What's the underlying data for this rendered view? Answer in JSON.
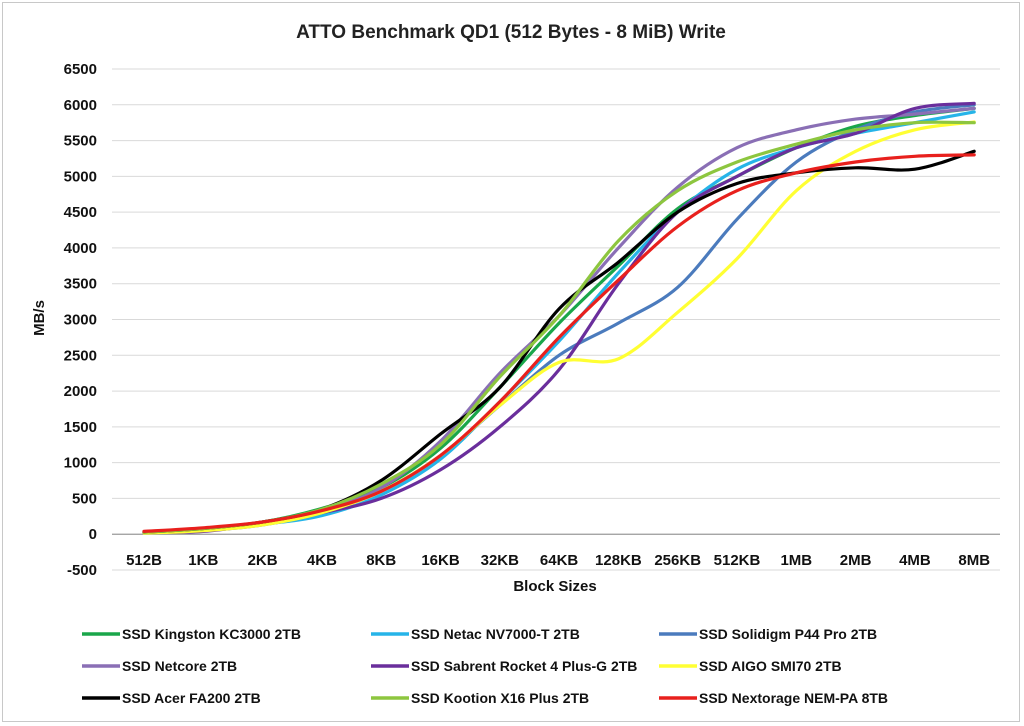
{
  "chart_data": {
    "type": "line",
    "title": "ATTO Benchmark QD1 (512 Bytes - 8 MiB) Write",
    "xlabel": "Block Sizes",
    "ylabel": "MB/s",
    "ylim": [
      -500,
      6500
    ],
    "y_ticks": [
      -500,
      0,
      500,
      1000,
      1500,
      2000,
      2500,
      3000,
      3500,
      4000,
      4500,
      5000,
      5500,
      6000,
      6500
    ],
    "grid": "horizontal",
    "legend_position": "bottom",
    "categories": [
      "512B",
      "1KB",
      "2KB",
      "4KB",
      "8KB",
      "16KB",
      "32KB",
      "64KB",
      "128KB",
      "256KB",
      "512KB",
      "1MB",
      "2MB",
      "4MB",
      "8MB"
    ],
    "series": [
      {
        "name": "SSD Kingston KC3000 2TB",
        "color": "#1aa64a",
        "values": [
          30,
          80,
          170,
          360,
          650,
          1200,
          2050,
          2950,
          3750,
          4550,
          5000,
          5400,
          5700,
          5850,
          5950
        ]
      },
      {
        "name": "SSD Netac NV7000-T 2TB",
        "color": "#26b4e8",
        "values": [
          20,
          60,
          140,
          260,
          550,
          1050,
          1850,
          2700,
          3650,
          4500,
          5100,
          5400,
          5600,
          5750,
          5900
        ]
      },
      {
        "name": "SSD Solidigm P44 Pro 2TB",
        "color": "#4b7bbd",
        "values": [
          15,
          50,
          130,
          300,
          600,
          1100,
          1800,
          2500,
          2950,
          3450,
          4400,
          5200,
          5650,
          5900,
          6000
        ]
      },
      {
        "name": "SSD Netcore 2TB",
        "color": "#8a6fb5",
        "values": [
          20,
          60,
          150,
          330,
          650,
          1300,
          2250,
          3050,
          4000,
          4850,
          5400,
          5650,
          5800,
          5870,
          5950
        ]
      },
      {
        "name": "SSD Sabrent Rocket 4 Plus-G 2TB",
        "color": "#6a2e9c",
        "values": [
          25,
          40,
          150,
          300,
          500,
          900,
          1500,
          2300,
          3500,
          4500,
          5000,
          5400,
          5600,
          5950,
          6020
        ]
      },
      {
        "name": "SSD AIGO SMI70 2TB",
        "color": "#ffff33",
        "values": [
          15,
          50,
          130,
          300,
          600,
          1100,
          1800,
          2400,
          2450,
          3100,
          3850,
          4800,
          5350,
          5650,
          5760
        ]
      },
      {
        "name": "SSD Acer FA200 2TB",
        "color": "#000000",
        "values": [
          30,
          80,
          170,
          350,
          750,
          1400,
          2050,
          3150,
          3800,
          4500,
          4900,
          5050,
          5120,
          5100,
          5350
        ]
      },
      {
        "name": "SSD Kootion X16 Plus 2TB",
        "color": "#8dc63f",
        "values": [
          30,
          80,
          170,
          350,
          700,
          1250,
          2200,
          3050,
          4100,
          4800,
          5200,
          5450,
          5650,
          5750,
          5750
        ]
      },
      {
        "name": "SSD Nextorage NEM-PA 8TB",
        "color": "#e8201d",
        "values": [
          40,
          90,
          170,
          330,
          600,
          1100,
          1850,
          2750,
          3550,
          4300,
          4800,
          5050,
          5200,
          5280,
          5300
        ]
      }
    ]
  }
}
